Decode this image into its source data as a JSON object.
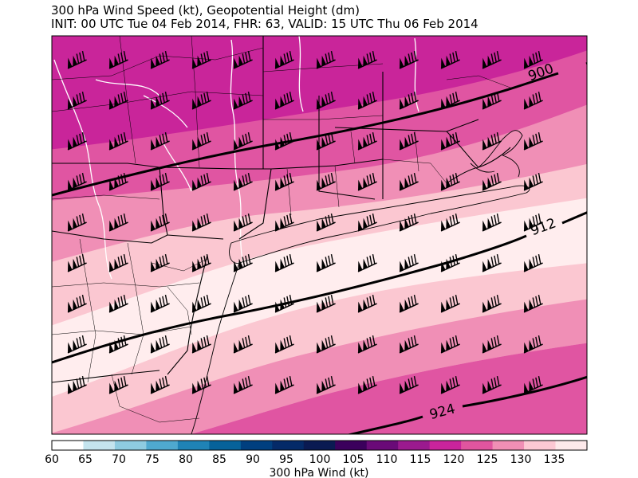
{
  "title_line1": "300 hPa Wind Speed (kt), Geopotential Height (dm)",
  "title_line2": "INIT: 00 UTC Tue 04 Feb 2014, FHR: 63, VALID: 15 UTC Thu 06 Feb 2014",
  "contours": [
    {
      "label": "900"
    },
    {
      "label": "912"
    },
    {
      "label": "924"
    }
  ],
  "colorbar": {
    "label": "300 hPa Wind (kt)",
    "ticks": [
      "60",
      "65",
      "70",
      "75",
      "80",
      "85",
      "90",
      "95",
      "100",
      "105",
      "110",
      "115",
      "120",
      "125",
      "130",
      "135"
    ],
    "colors": [
      "#ffffff",
      "#c4e4ee",
      "#8ecbe0",
      "#4fa9cf",
      "#1f83b6",
      "#06629a",
      "#003f7f",
      "#042a68",
      "#0a1a52",
      "#3b005c",
      "#6a0a78",
      "#9b1a8e",
      "#c9249c",
      "#e0559f",
      "#f08fb5",
      "#fcc8d3",
      "#fde9ea"
    ]
  },
  "map": {
    "wind_barb_speed_kt": 120,
    "colors": {
      "band_110": "#c9259a",
      "band_115": "#e055a2",
      "band_120": "#f08fb6",
      "band_125": "#fbc7d1",
      "band_130": "#ffedee",
      "contour": "#000000",
      "border": "#000000",
      "river": "#ffffff"
    }
  }
}
